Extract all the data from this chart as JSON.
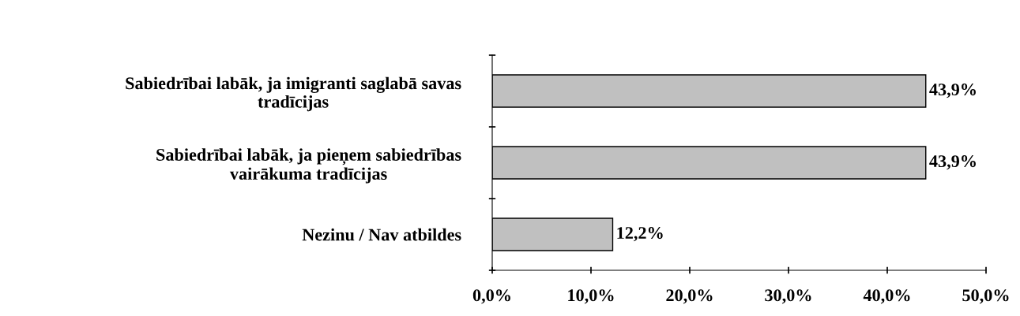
{
  "chart_data": {
    "type": "bar",
    "orientation": "horizontal",
    "categories": [
      "Sabiedrībai labāk, ja imigranti saglabā savas\ntradīcijas",
      "Sabiedrībai labāk, ja pieņem sabiedrības\nvairākuma tradīcijas",
      "Nezinu / Nav atbildes"
    ],
    "values": [
      43.9,
      43.9,
      12.2
    ],
    "value_labels": [
      "43,9%",
      "43,9%",
      "12,2%"
    ],
    "color": "#c0c0c0",
    "xlim": [
      0,
      50
    ],
    "xticks": [
      {
        "value": 0,
        "label": "0,0%"
      },
      {
        "value": 10,
        "label": "10,0%"
      },
      {
        "value": 20,
        "label": "20,0%"
      },
      {
        "value": 30,
        "label": "30,0%"
      },
      {
        "value": 40,
        "label": "40,0%"
      },
      {
        "value": 50,
        "label": "50,0%"
      }
    ],
    "grid": false,
    "legend": false
  }
}
